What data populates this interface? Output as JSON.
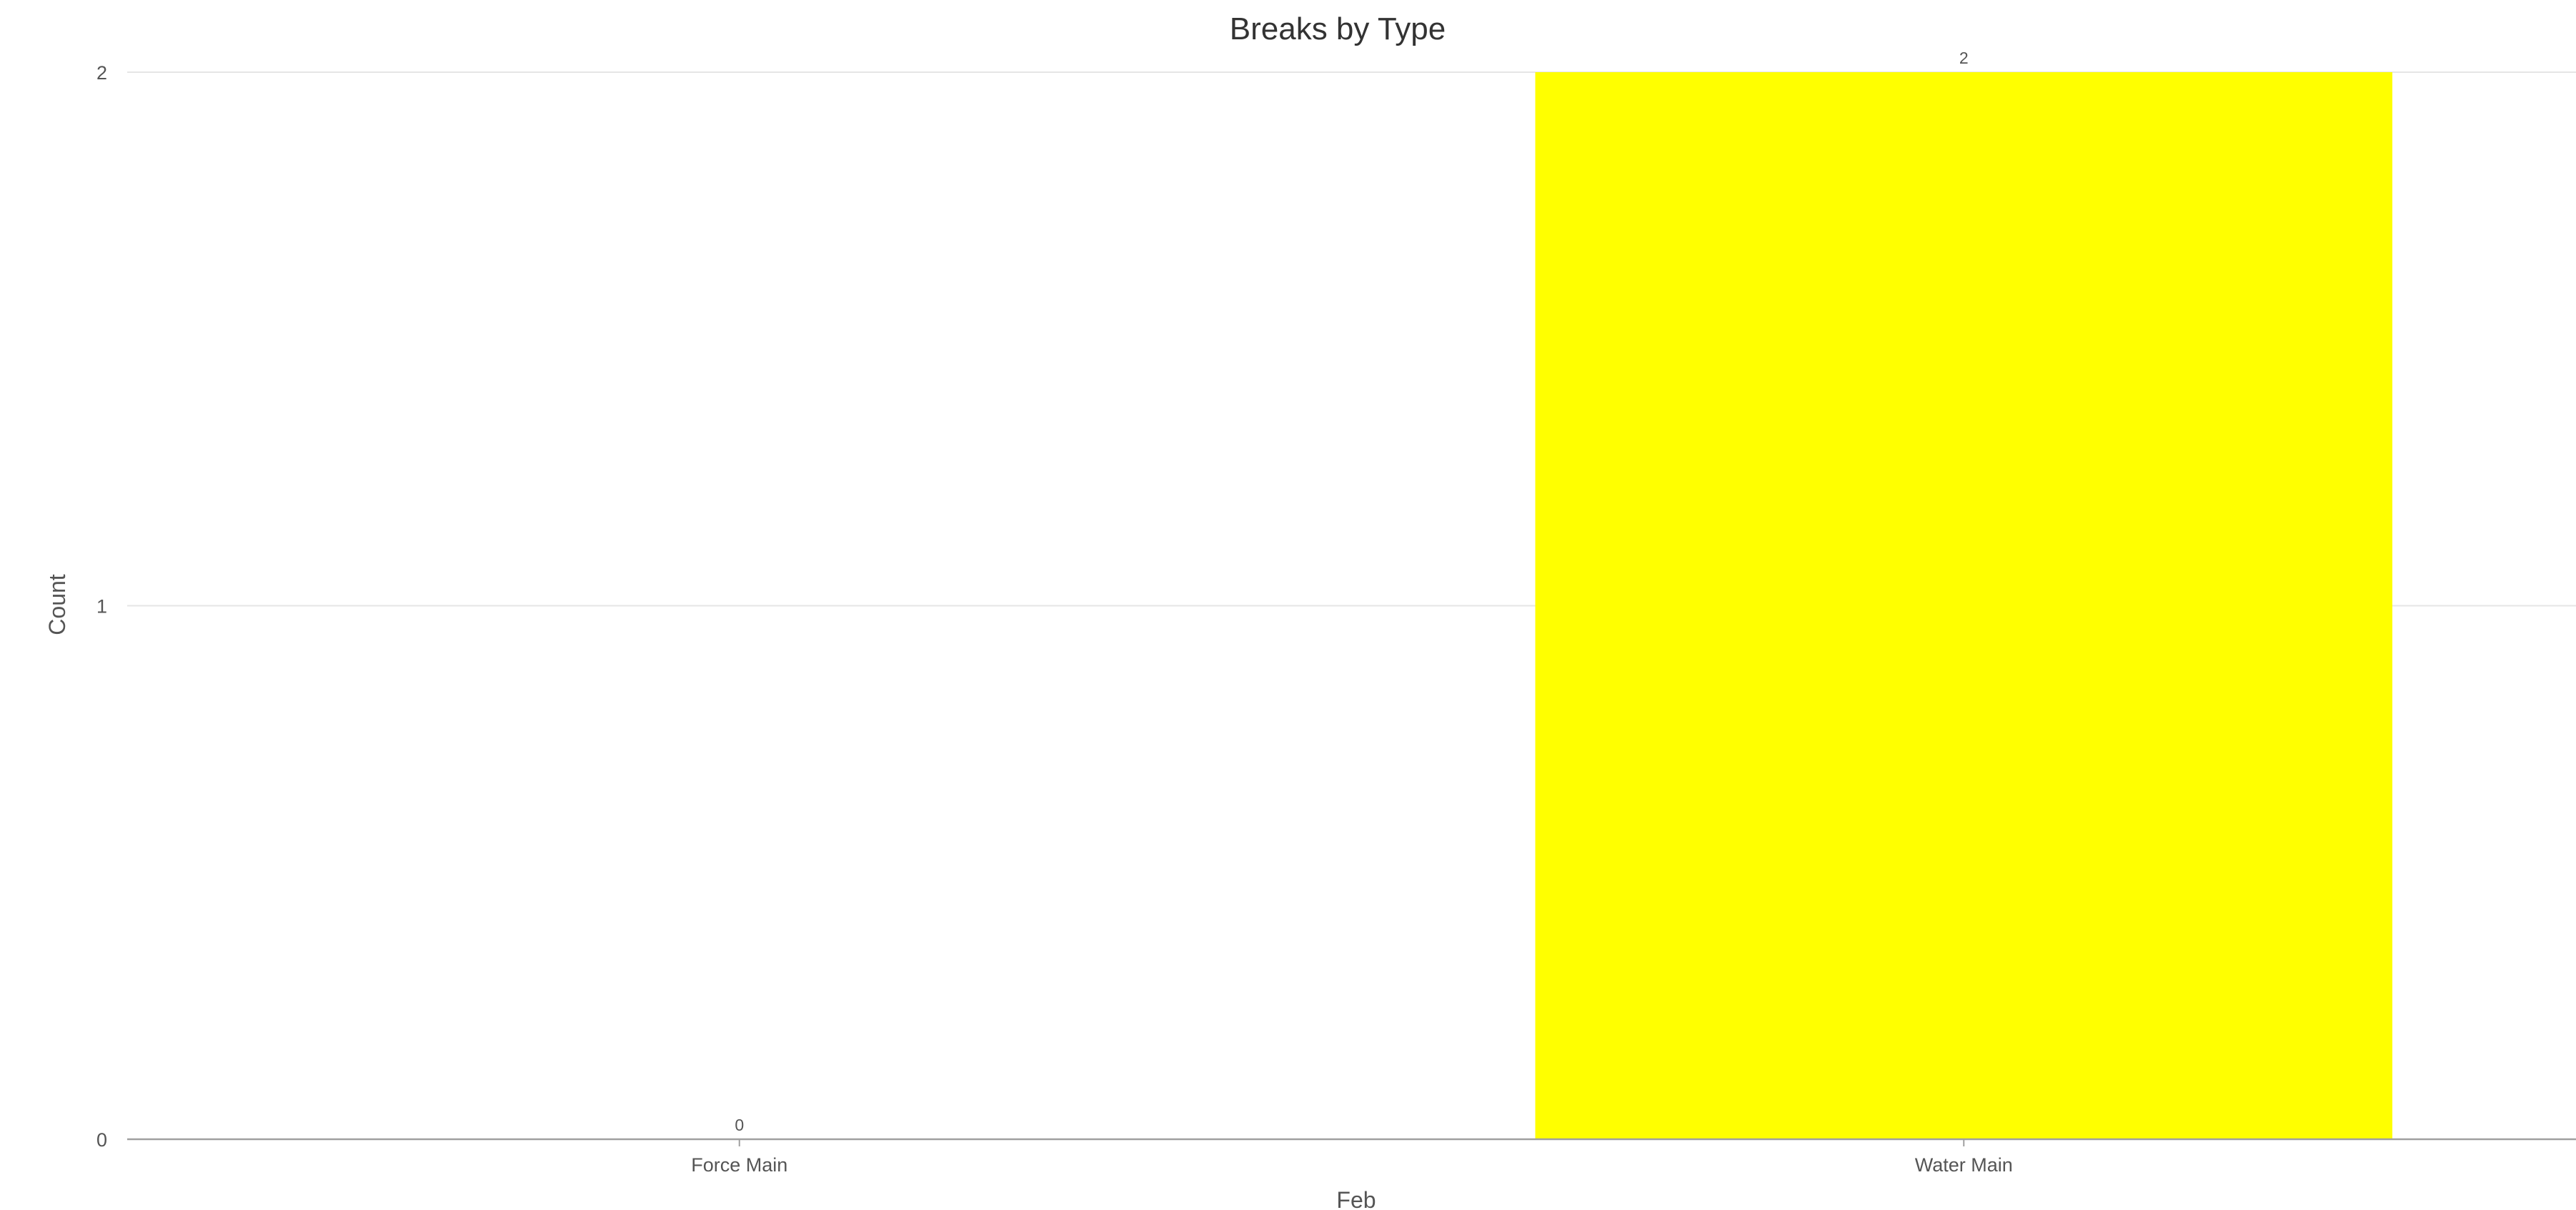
{
  "chart_data": {
    "type": "bar",
    "title": "Breaks by Type",
    "xlabel": "Feb",
    "ylabel": "Count",
    "categories": [
      "Force Main",
      "Water Main"
    ],
    "values": [
      0,
      2
    ],
    "data_labels": [
      "0",
      "2"
    ],
    "ylim": [
      0,
      2
    ],
    "yticks": [
      0,
      1,
      2
    ],
    "ytick_labels": [
      "0",
      "1",
      "2"
    ],
    "grid": true,
    "legend": "none",
    "colors": {
      "bar": "#FFFF00",
      "text": "#555555",
      "title": "#333333",
      "grid": "#e6e6e6",
      "axis": "#a0a0a0"
    }
  }
}
